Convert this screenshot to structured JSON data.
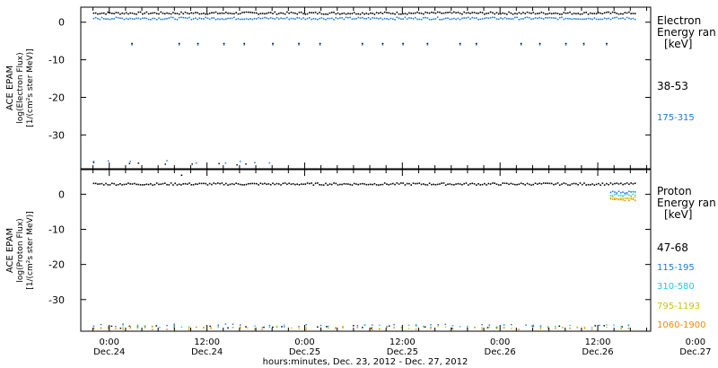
{
  "xaxis": {
    "title": "hours:minutes, Dec. 23, 2012 - Dec. 27, 2012",
    "xlim": [
      -3.5,
      66.5
    ],
    "ticks": [
      {
        "hour": 0,
        "time": "0:00",
        "date": "Dec.24"
      },
      {
        "hour": 12,
        "time": "12:00",
        "date": "Dec.24"
      },
      {
        "hour": 24,
        "time": "0:00",
        "date": "Dec.25"
      },
      {
        "hour": 36,
        "time": "12:00",
        "date": "Dec.25"
      },
      {
        "hour": 48,
        "time": "0:00",
        "date": "Dec.26"
      },
      {
        "hour": 60,
        "time": "12:00",
        "date": "Dec.26"
      },
      {
        "hour": 72,
        "time": "0:00",
        "date": "Dec.27"
      }
    ]
  },
  "chart_data": [
    {
      "type": "scatter",
      "ylabel": [
        "ACE EPAM",
        "log(Electron Flux)",
        "[1/(cm²s ster MeV)]"
      ],
      "ylim": [
        -39,
        4
      ],
      "yticks": [
        0,
        -10,
        -20,
        -30
      ],
      "legend": {
        "title": [
          "Electron",
          "Energy ran",
          "[keV]"
        ],
        "entries": [
          {
            "label": "38-53",
            "color": "#000000"
          },
          {
            "label": "175-315",
            "color": "#1f7ad6"
          }
        ]
      },
      "series": [
        {
          "name": "38-53",
          "color": "#000000",
          "base": 2.6,
          "fill_value": -37.5,
          "scatter_value": -5.5
        },
        {
          "name": "175-315",
          "color": "#1f7ad6",
          "base": 1.2,
          "fill_value": -37.0,
          "scatter_value": -5.8
        }
      ],
      "x_range": [
        -2,
        64.5
      ],
      "fill_x_range": [
        -2,
        21
      ],
      "scatter_points": [
        2.7,
        8.5,
        10.8,
        14.0,
        16.5,
        20.0,
        23.2,
        25.8,
        31.0,
        33.5,
        36.0,
        39.0,
        43.0,
        45.0,
        50.5,
        52.8,
        56.0,
        58.2,
        61.0
      ]
    },
    {
      "type": "scatter",
      "ylabel": [
        "ACE EPAM",
        "log(Proton Flux)",
        "[1/(cm²s ster MeV)]"
      ],
      "ylim": [
        -39,
        7
      ],
      "yticks": [
        0,
        -10,
        -20,
        -30
      ],
      "legend": {
        "title": [
          "Proton",
          "Energy ran",
          "[keV]"
        ],
        "entries": [
          {
            "label": "47-68",
            "color": "#000000"
          },
          {
            "label": "115-195",
            "color": "#1f7ad6"
          },
          {
            "label": "310-580",
            "color": "#25c9d6"
          },
          {
            "label": "795-1193",
            "color": "#d4d000"
          },
          {
            "label": "1060-1900",
            "color": "#ee8a00"
          }
        ]
      },
      "series": [
        {
          "name": "47-68",
          "color": "#000000",
          "base": 3.1,
          "fill_value": -37.6
        },
        {
          "name": "115-195",
          "color": "#1f7ad6",
          "base": 0.8,
          "fill_value": -37.2
        },
        {
          "name": "310-580",
          "color": "#25c9d6",
          "base": 0.0,
          "fill_value": -37.4
        },
        {
          "name": "795-1193",
          "color": "#d4d000",
          "base": -0.8,
          "fill_value": -37.8
        },
        {
          "name": "1060-1900",
          "color": "#ee8a00",
          "base": -1.3,
          "fill_value": -38.0
        }
      ],
      "x_range": [
        -2,
        64.5
      ],
      "colored_x_range": [
        61.5,
        64.5
      ],
      "fill_x_range": [
        -2,
        64
      ],
      "scatter_points": [
        8.8
      ]
    }
  ]
}
